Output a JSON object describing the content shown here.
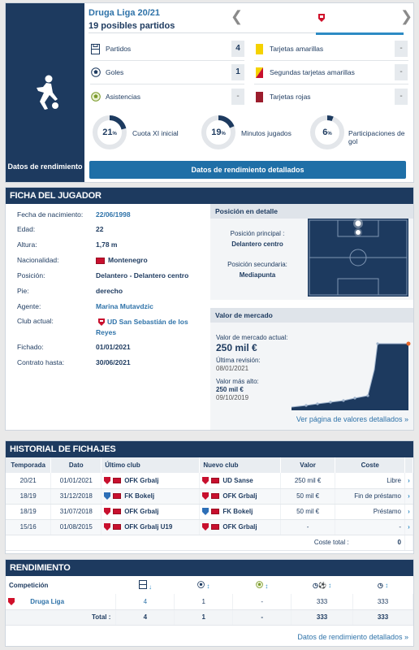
{
  "stats": {
    "league": "Druga Liga 20/21",
    "matches_possible": "19 posibles partidos",
    "nav_prev": "❮",
    "nav_next": "❯",
    "side_caption": "Datos de rendimiento",
    "left_rows": [
      {
        "label": "Partidos",
        "value": "4",
        "icon": "pitch-icon"
      },
      {
        "label": "Goles",
        "value": "1",
        "icon": "ball-icon"
      },
      {
        "label": "Asistencias",
        "value": "-",
        "icon": "assist-ball-icon"
      }
    ],
    "right_rows": [
      {
        "label": "Tarjetas amarillas",
        "value": "-",
        "color": "#f5d200"
      },
      {
        "label": "Segundas tarjetas amarillas",
        "value": "-",
        "color": "#f5d200"
      },
      {
        "label": "Tarjetas rojas",
        "value": "-",
        "color": "#9b1c2c"
      }
    ],
    "donuts": [
      {
        "pct": "21",
        "unit": "%",
        "label": "Cuota XI inicial",
        "fraction": 0.21
      },
      {
        "pct": "19",
        "unit": "%",
        "label": "Minutos jugados",
        "fraction": 0.19
      },
      {
        "pct": "6",
        "unit": "%",
        "label": "Participaciones de gol",
        "fraction": 0.06
      }
    ],
    "detail_button": "Datos de rendimiento detallados"
  },
  "ficha": {
    "title": "FICHA DEL JUGADOR",
    "rows": [
      {
        "label": "Fecha de nacimiento:",
        "value": "22/06/1998",
        "link": true
      },
      {
        "label": "Edad:",
        "value": "22"
      },
      {
        "label": "Altura:",
        "value": "1,78 m"
      },
      {
        "label": "Nacionalidad:",
        "value": "Montenegro",
        "flag": true
      },
      {
        "label": "Posición:",
        "value": "Delantero - Delantero centro"
      },
      {
        "label": "Pie:",
        "value": "derecho"
      },
      {
        "label": "Agente:",
        "value": "Marina Mutavdzic",
        "link": true
      },
      {
        "label": "Club actual:",
        "value": "UD San Sebastián de los Reyes",
        "link": true,
        "crest": true
      },
      {
        "label": "Fichado:",
        "value": "01/01/2021"
      },
      {
        "label": "Contrato hasta:",
        "value": "30/06/2021"
      }
    ],
    "pos_title": "Posición en detalle",
    "pos_main_label": "Posición principal :",
    "pos_main_value": "Delantero centro",
    "pos_second_label": "Posición secundaria:",
    "pos_second_value": "Mediapunta",
    "mv_title": "Valor de mercado",
    "mv_current_label": "Valor de mercado actual:",
    "mv_current_value": "250 mil €",
    "mv_last_label": "Última revisión:",
    "mv_last_value": "08/01/2021",
    "mv_high_label": "Valor más alto:",
    "mv_high_value": "250 mil €",
    "mv_high_date": "09/10/2019",
    "mv_more": "Ver página de valores detallados »"
  },
  "history": {
    "title": "HISTORIAL DE FICHAJES",
    "headers": [
      "Temporada",
      "Dato",
      "Último club",
      "Nuevo club",
      "Valor",
      "Coste"
    ],
    "rows": [
      {
        "season": "20/21",
        "date": "01/01/2021",
        "from": "OFK Grbalj",
        "to": "UD Sanse",
        "value": "250 mil €",
        "fee": "Libre"
      },
      {
        "season": "18/19",
        "date": "31/12/2018",
        "from": "FK Bokelj",
        "to": "OFK Grbalj",
        "value": "50 mil €",
        "fee": "Fin de préstamo"
      },
      {
        "season": "18/19",
        "date": "31/07/2018",
        "from": "OFK Grbalj",
        "to": "FK Bokelj",
        "value": "50 mil €",
        "fee": "Préstamo"
      },
      {
        "season": "15/16",
        "date": "01/08/2015",
        "from": "OFK Grbalj U19",
        "to": "OFK Grbalj",
        "value": "-",
        "fee": "-"
      }
    ],
    "total_label": "Coste total :",
    "total_value": "0"
  },
  "rendimiento": {
    "title": "RENDIMIENTO",
    "comp_header": "Competición",
    "row": {
      "comp": "Druga Liga",
      "apps": "4",
      "goals": "1",
      "assists": "-",
      "mins_per_goal": "333",
      "mins": "333"
    },
    "total": {
      "label": "Total :",
      "apps": "4",
      "goals": "1",
      "assists": "-",
      "mins_per_goal": "333",
      "mins": "333"
    },
    "more": "Datos de rendimiento detallados »"
  }
}
